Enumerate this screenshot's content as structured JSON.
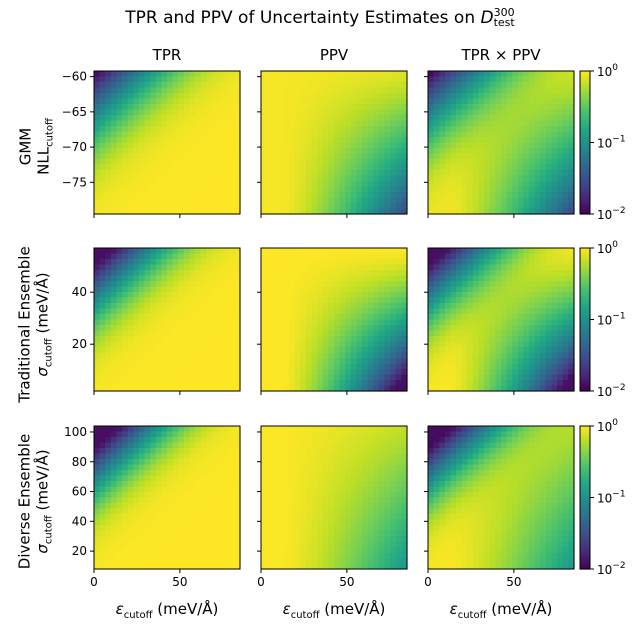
{
  "figure": {
    "title": "TPR and PPV of Uncertainty Estimates on",
    "title_symbol": "D",
    "title_sup": "300",
    "title_sub": "test"
  },
  "columns": [
    {
      "title": "TPR"
    },
    {
      "title": "PPV"
    },
    {
      "title": "TPR × PPV"
    }
  ],
  "x_axis": {
    "label_prefix": "ε",
    "label_sub": "cutoff",
    "label_unit": "(meV/Å)",
    "ticks": [
      "0",
      "50"
    ],
    "tick_values": [
      0,
      50
    ],
    "range": [
      0,
      85
    ]
  },
  "rows": [
    {
      "name": "GMM",
      "ylabel_line1": "GMM",
      "ylabel_var": "NLL",
      "ylabel_sub": "cutoff",
      "ylabel_unit": "",
      "yticks": [
        "−60",
        "−65",
        "−70",
        "−75"
      ],
      "ytick_values": [
        -60,
        -65,
        -70,
        -75
      ],
      "yrange": [
        -79.5,
        -59.2
      ]
    },
    {
      "name": "Traditional Ensemble",
      "ylabel_line1": "Traditional Ensemble",
      "ylabel_var": "σ",
      "ylabel_sub": "cutoff",
      "ylabel_unit": "(meV/Å)",
      "yticks": [
        "40",
        "20"
      ],
      "ytick_values": [
        40,
        20
      ],
      "yrange": [
        2,
        57
      ]
    },
    {
      "name": "Diverse Ensemble",
      "ylabel_line1": "Diverse Ensemble",
      "ylabel_var": "σ",
      "ylabel_sub": "cutoff",
      "ylabel_unit": "(meV/Å)",
      "yticks": [
        "100",
        "80",
        "60",
        "40",
        "20"
      ],
      "ytick_values": [
        100,
        80,
        60,
        40,
        20
      ],
      "yrange": [
        8,
        104
      ]
    }
  ],
  "colorbar": {
    "scale": "log",
    "ticks": [
      {
        "base": "10",
        "exp": "0",
        "value": 1
      },
      {
        "base": "10",
        "exp": "−1",
        "value": 0.1
      },
      {
        "base": "10",
        "exp": "−2",
        "value": 0.01
      }
    ],
    "range": [
      0.01,
      1
    ],
    "colormap": "viridis"
  },
  "chart_data": {
    "type": "heatmap",
    "title": "TPR and PPV of Uncertainty Estimates on D_test^300",
    "layout": "3 rows × 3 columns",
    "columns": [
      "TPR",
      "PPV",
      "TPR × PPV"
    ],
    "rows": [
      "GMM",
      "Traditional Ensemble",
      "Diverse Ensemble"
    ],
    "xlabel": "ε_cutoff (meV/Å)",
    "xlim": [
      0,
      85
    ],
    "ylims": [
      [
        -79.5,
        -59.2
      ],
      [
        2,
        57
      ],
      [
        8,
        104
      ]
    ],
    "color_scale": "log",
    "color_range": [
      0.01,
      1
    ],
    "colormap": "viridis",
    "description_trends": {
      "TPR": "increases toward high ε_cutoff and low y cutoff (bright bottom-right), lowest at top-left",
      "PPV": "high (bright) at low ε_cutoff, decreases toward high ε_cutoff and low y cutoff (dark bottom-right)",
      "TPR × PPV": "product: dark at top-left and bottom-right corners, brighter band along the diagonal"
    }
  }
}
